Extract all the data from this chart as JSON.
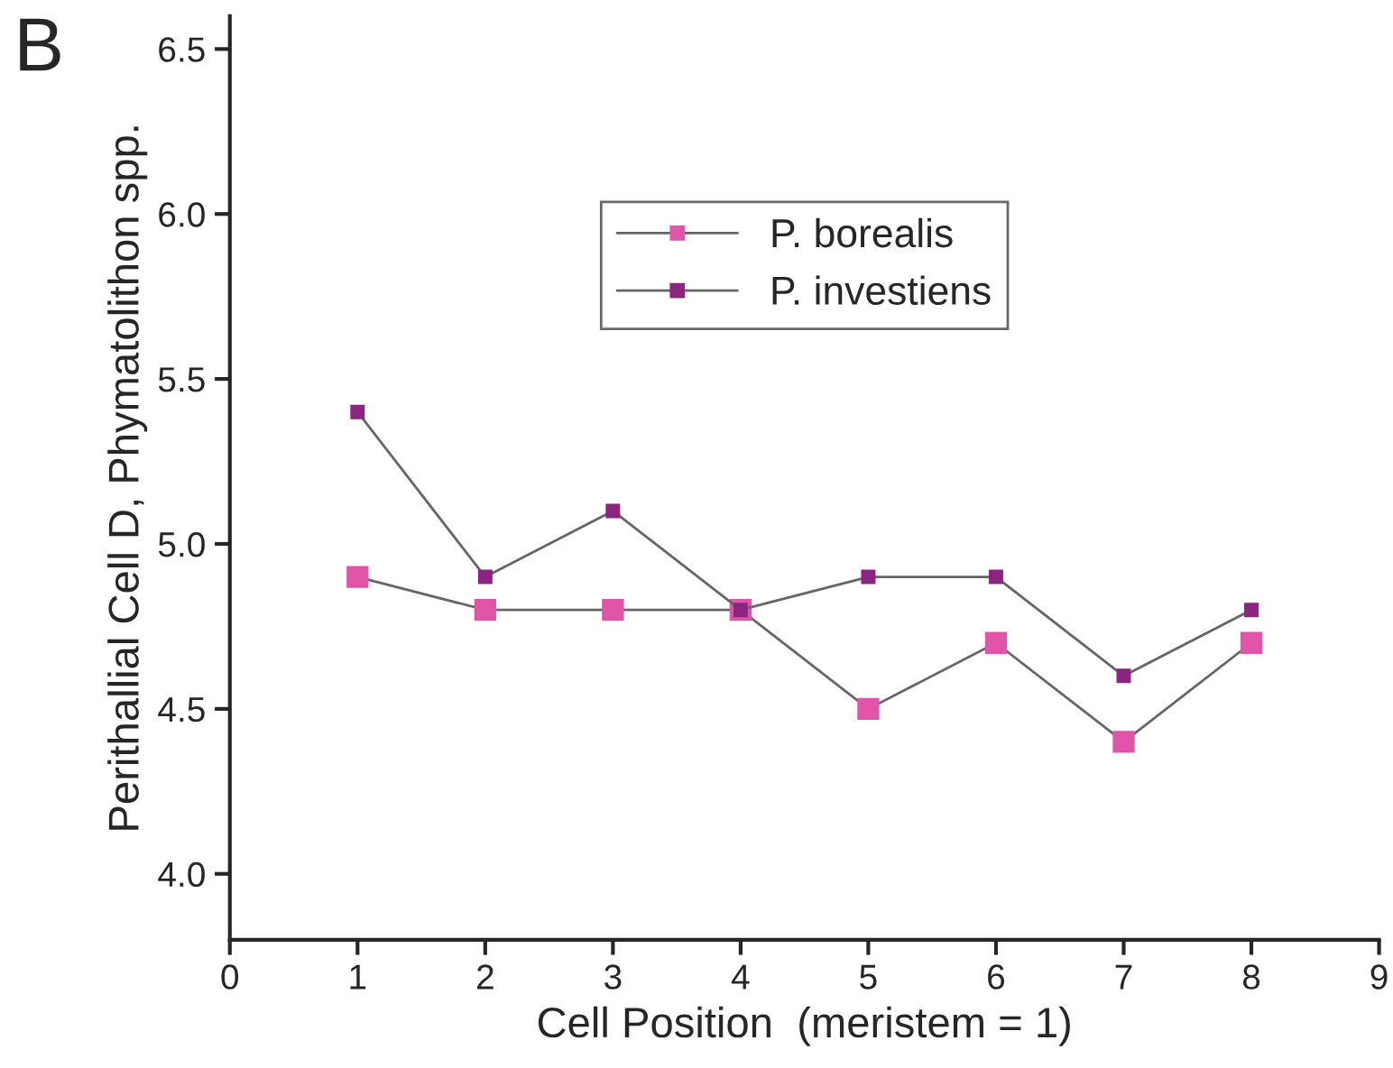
{
  "chart_data": {
    "type": "line",
    "xlabel": "Cell Position  (meristem = 1)",
    "ylabel": "Perithallial Cell D, Phymatolithon spp.",
    "annotations": [
      "B"
    ],
    "x": [
      1,
      2,
      3,
      4,
      5,
      6,
      7,
      8
    ],
    "series": [
      {
        "name": "P. borealis",
        "color": "#e055a8",
        "values": [
          4.9,
          4.8,
          4.8,
          4.8,
          4.5,
          4.7,
          4.4,
          4.7
        ]
      },
      {
        "name": "P. investiens",
        "color": "#8b2580",
        "values": [
          5.4,
          4.9,
          5.1,
          4.8,
          4.9,
          4.9,
          4.6,
          4.8
        ]
      }
    ],
    "xlim": [
      0,
      9
    ],
    "xticks": [
      0,
      1,
      2,
      3,
      4,
      5,
      6,
      7,
      8,
      9
    ],
    "ylim": [
      3.8,
      6.6
    ],
    "yticks": [
      {
        "value": 4,
        "label": "4.0"
      },
      4.5,
      {
        "value": 5,
        "label": "5.0"
      },
      5.5,
      {
        "value": 6,
        "label": "6.0"
      },
      6.5
    ],
    "legend": "top center",
    "marker": "square",
    "line_style": "solid",
    "grid": false
  }
}
